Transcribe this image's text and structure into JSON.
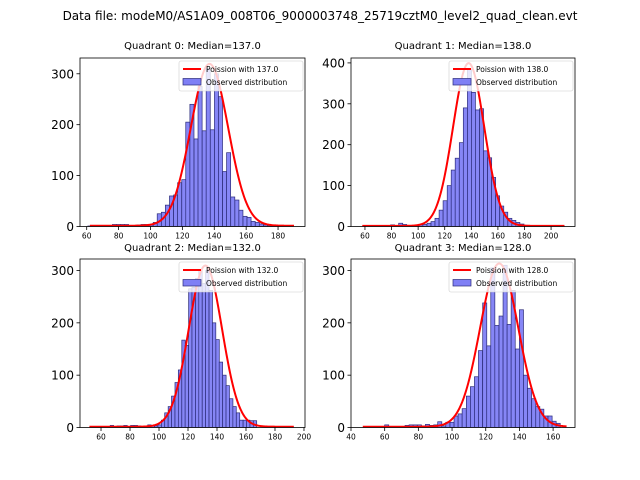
{
  "figure": {
    "suptitle": "Data file: modeM0/AS1A09_008T06_9000003748_25719cztM0_level2_quad_clean.evt"
  },
  "colors": {
    "bar_fill": "#7f7ff5",
    "bar_edge": "#2c2c7a",
    "curve": "#ff0000",
    "axis": "#000000"
  },
  "chart_data": [
    {
      "type": "bar",
      "panel": "top-left",
      "title": "Quadrant 0: Median=137.0",
      "xlabel": "",
      "ylabel": "",
      "xlim": [
        55.8,
        196.9
      ],
      "ylim": [
        0,
        331
      ],
      "xticks": [
        60,
        80,
        100,
        120,
        140,
        160,
        180
      ],
      "yticks": [
        0,
        100,
        200,
        300
      ],
      "grid": false,
      "legend": {
        "placement": "top-right",
        "entries": [
          "Poission with 137.0",
          "Observed distribution"
        ]
      },
      "poisson_mean": 137.0,
      "curve_peak": 318,
      "curve_range": [
        62,
        190
      ],
      "bin_width": 2.56,
      "bin_centers": [
        62,
        64.6,
        67.1,
        69.7,
        72.2,
        74.8,
        77.4,
        79.9,
        82.5,
        85,
        87.6,
        90.2,
        92.7,
        95.3,
        97.8,
        100.4,
        103,
        105.5,
        108.1,
        110.6,
        113.2,
        115.8,
        118.3,
        120.9,
        123.4,
        126,
        128.6,
        131.1,
        133.7,
        136.2,
        138.8,
        141.4,
        143.9,
        146.5,
        149,
        151.6,
        154.2,
        156.7,
        159.3,
        161.8,
        164.4,
        167,
        169.5,
        172.1,
        174.6,
        177.2,
        179.8,
        182.3,
        184.9,
        187.4
      ],
      "values": [
        1,
        0,
        0,
        0,
        1,
        0,
        4,
        4,
        4,
        4,
        0,
        0,
        3,
        4,
        4,
        3,
        8,
        25,
        28,
        42,
        60,
        62,
        86,
        92,
        205,
        240,
        172,
        275,
        188,
        310,
        190,
        300,
        255,
        108,
        145,
        58,
        52,
        32,
        20,
        18,
        10,
        8,
        5,
        3,
        2,
        1,
        1,
        1,
        0,
        1
      ]
    },
    {
      "type": "bar",
      "panel": "top-right",
      "title": "Quadrant 1: Median=138.0",
      "xlabel": "",
      "ylabel": "",
      "xlim": [
        49.5,
        218
      ],
      "ylim": [
        0,
        412
      ],
      "xticks": [
        60,
        80,
        100,
        120,
        140,
        160,
        180,
        200
      ],
      "yticks": [
        0,
        100,
        200,
        300,
        400
      ],
      "grid": false,
      "legend": {
        "placement": "top-right",
        "entries": [
          "Poission with 138.0",
          "Observed distribution"
        ]
      },
      "poisson_mean": 138.0,
      "curve_peak": 398,
      "curve_range": [
        58,
        210
      ],
      "bin_width": 3.04,
      "bin_centers": [
        59.5,
        62.6,
        65.6,
        68.6,
        71.7,
        74.7,
        77.8,
        80.8,
        83.8,
        86.9,
        89.9,
        93,
        96,
        99,
        102.1,
        105.1,
        108.2,
        111.2,
        114.2,
        117.3,
        120.3,
        123.4,
        126.4,
        129.4,
        132.5,
        135.5,
        138.6,
        141.6,
        144.6,
        147.7,
        150.7,
        153.8,
        156.8,
        159.8,
        162.9,
        165.9,
        169,
        172,
        175,
        178.1,
        181.1,
        184.2,
        187.2,
        190.2,
        193.3,
        196.3,
        199.4,
        202.4,
        205.4,
        208.5
      ],
      "values": [
        0,
        0,
        0,
        0,
        2,
        2,
        1,
        4,
        2,
        8,
        5,
        2,
        1,
        3,
        4,
        5,
        8,
        12,
        20,
        40,
        63,
        100,
        138,
        167,
        205,
        290,
        385,
        328,
        285,
        288,
        185,
        168,
        120,
        75,
        50,
        35,
        20,
        15,
        10,
        6,
        3,
        2,
        1,
        1,
        0,
        0,
        0,
        0,
        0,
        1
      ]
    },
    {
      "type": "bar",
      "panel": "bottom-left",
      "title": "Quadrant 2: Median=132.0",
      "xlabel": "",
      "ylabel": "",
      "xlim": [
        45.5,
        200.7
      ],
      "ylim": [
        0,
        322
      ],
      "xticks": [
        60,
        80,
        100,
        120,
        140,
        160,
        180,
        200
      ],
      "yticks": [
        0,
        100,
        200,
        300
      ],
      "grid": false,
      "legend": {
        "placement": "top-right",
        "entries": [
          "Poission with 132.0",
          "Observed distribution"
        ]
      },
      "poisson_mean": 132.0,
      "curve_peak": 308,
      "curve_range": [
        52,
        193
      ],
      "bin_width": 2.35,
      "bin_centers": [
        67.5,
        69.9,
        72.2,
        74.6,
        76.9,
        79.3,
        81.6,
        84,
        86.3,
        88.7,
        91,
        93.4,
        95.7,
        98.1,
        100.4,
        102.8,
        105.1,
        107.5,
        109.8,
        112.2,
        114.5,
        116.9,
        119.2,
        121.6,
        123.9,
        126.3,
        128.6,
        131,
        133.3,
        135.7,
        138,
        140.4,
        142.7,
        145.1,
        147.4,
        149.8,
        152.1,
        154.5,
        156.8,
        159.2,
        161.5,
        163.9,
        166.2
      ],
      "values": [
        4,
        2,
        3,
        3,
        4,
        1,
        4,
        4,
        3,
        1,
        3,
        5,
        4,
        3,
        5,
        14,
        28,
        40,
        60,
        86,
        110,
        167,
        157,
        265,
        268,
        285,
        300,
        275,
        300,
        262,
        200,
        168,
        125,
        100,
        80,
        55,
        40,
        28,
        14,
        14,
        14,
        13,
        13
      ]
    },
    {
      "type": "bar",
      "panel": "bottom-right",
      "title": "Quadrant 3: Median=128.0",
      "xlabel": "",
      "ylabel": "",
      "xlim": [
        40,
        173
      ],
      "ylim": [
        0,
        322
      ],
      "xticks": [
        40,
        60,
        80,
        100,
        120,
        140,
        160
      ],
      "yticks": [
        0,
        100,
        200,
        300
      ],
      "grid": false,
      "legend": {
        "placement": "top-right",
        "entries": [
          "Poission with 128.0",
          "Observed distribution"
        ]
      },
      "poisson_mean": 128.0,
      "curve_peak": 312,
      "curve_range": [
        47,
        168
      ],
      "bin_width": 2.42,
      "bin_centers": [
        61.2,
        63.6,
        66,
        68.4,
        70.9,
        73.3,
        75.7,
        78.1,
        80.6,
        83,
        85.4,
        87.8,
        90.3,
        92.7,
        95.1,
        97.5,
        100,
        102.4,
        104.8,
        107.2,
        109.7,
        112.1,
        114.5,
        116.9,
        119.4,
        121.8,
        124.2,
        126.6,
        129.1,
        131.5,
        133.9,
        136.3,
        138.8,
        141.2,
        143.6,
        146,
        148.5,
        150.9,
        153.3,
        155.7,
        158.2,
        160.6,
        163
      ],
      "values": [
        5,
        1,
        1,
        2,
        1,
        4,
        5,
        5,
        5,
        3,
        6,
        4,
        5,
        11,
        3,
        10,
        10,
        22,
        26,
        36,
        60,
        78,
        97,
        147,
        238,
        156,
        305,
        195,
        213,
        310,
        197,
        262,
        150,
        225,
        100,
        75,
        55,
        40,
        35,
        22,
        22,
        12,
        8
      ]
    }
  ]
}
